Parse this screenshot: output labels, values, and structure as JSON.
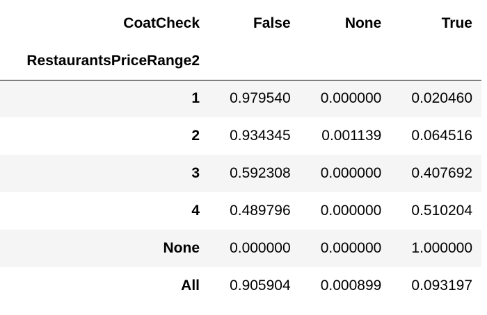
{
  "table": {
    "columns_name": "CoatCheck",
    "index_name": "RestaurantsPriceRange2",
    "columns": [
      "False",
      "None",
      "True"
    ],
    "rows": [
      {
        "index": "1",
        "values": [
          "0.979540",
          "0.000000",
          "0.020460"
        ]
      },
      {
        "index": "2",
        "values": [
          "0.934345",
          "0.001139",
          "0.064516"
        ]
      },
      {
        "index": "3",
        "values": [
          "0.592308",
          "0.000000",
          "0.407692"
        ]
      },
      {
        "index": "4",
        "values": [
          "0.489796",
          "0.000000",
          "0.510204"
        ]
      },
      {
        "index": "None",
        "values": [
          "0.000000",
          "0.000000",
          "1.000000"
        ]
      },
      {
        "index": "All",
        "values": [
          "0.905904",
          "0.000899",
          "0.093197"
        ]
      }
    ]
  }
}
